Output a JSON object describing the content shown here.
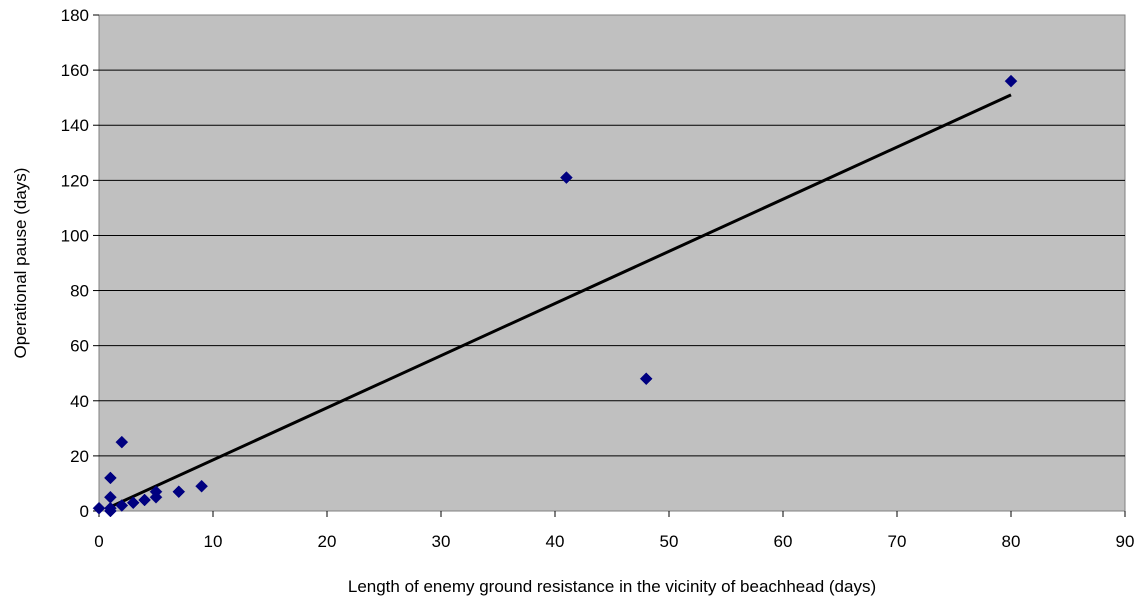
{
  "chart_data": {
    "type": "scatter",
    "title": "",
    "xlabel": "Length of enemy ground resistance in the vicinity of beachhead (days)",
    "ylabel": "Operational pause (days)",
    "xlim": [
      0,
      90
    ],
    "ylim": [
      0,
      180
    ],
    "xticks": [
      0,
      10,
      20,
      30,
      40,
      50,
      60,
      70,
      80,
      90
    ],
    "yticks": [
      0,
      20,
      40,
      60,
      80,
      100,
      120,
      140,
      160,
      180
    ],
    "grid": "horizontal",
    "legend": "none",
    "plot_background": "#C0C0C0",
    "marker_color": "#000080",
    "line_color": "#000000",
    "series": [
      {
        "points": [
          {
            "x": 0,
            "y": 1
          },
          {
            "x": 1,
            "y": 0
          },
          {
            "x": 1,
            "y": 1
          },
          {
            "x": 1,
            "y": 5
          },
          {
            "x": 1,
            "y": 12
          },
          {
            "x": 2,
            "y": 2
          },
          {
            "x": 2,
            "y": 25
          },
          {
            "x": 3,
            "y": 3
          },
          {
            "x": 4,
            "y": 4
          },
          {
            "x": 5,
            "y": 5
          },
          {
            "x": 5,
            "y": 7
          },
          {
            "x": 7,
            "y": 7
          },
          {
            "x": 9,
            "y": 9
          },
          {
            "x": 41,
            "y": 121
          },
          {
            "x": 48,
            "y": 48
          },
          {
            "x": 80,
            "y": 156
          }
        ]
      }
    ],
    "trendline": {
      "x": [
        1,
        80
      ],
      "y": [
        1.5,
        151
      ]
    }
  }
}
